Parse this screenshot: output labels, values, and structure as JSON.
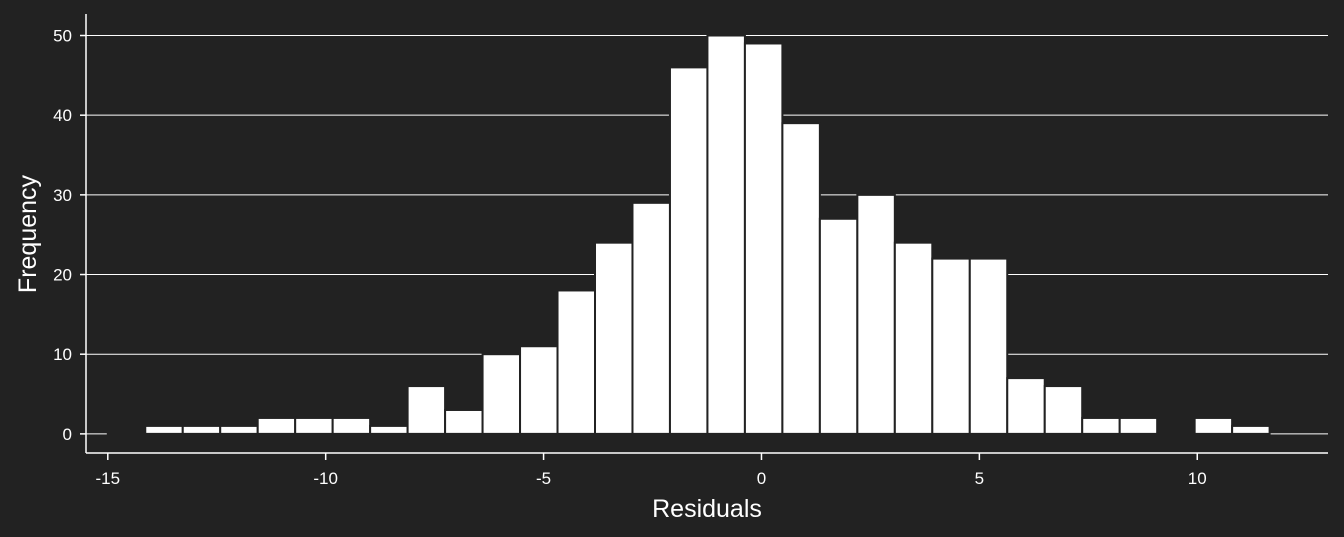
{
  "colors": {
    "background": "#222222",
    "bar_fill": "#ffffff",
    "bar_stroke": "#222222",
    "grid": "#ffffff",
    "axis": "#ffffff"
  },
  "chart_data": {
    "type": "bar",
    "subtype": "histogram",
    "title": "",
    "xlabel": "Residuals",
    "ylabel": "Frequency",
    "bin_width": 0.86,
    "bins": [
      {
        "x_start": -15.0,
        "x_end": -14.14,
        "count": 0
      },
      {
        "x_start": -14.14,
        "x_end": -13.28,
        "count": 1
      },
      {
        "x_start": -13.28,
        "x_end": -12.42,
        "count": 1
      },
      {
        "x_start": -12.42,
        "x_end": -11.56,
        "count": 1
      },
      {
        "x_start": -11.56,
        "x_end": -10.7,
        "count": 2
      },
      {
        "x_start": -10.7,
        "x_end": -9.84,
        "count": 2
      },
      {
        "x_start": -9.84,
        "x_end": -8.98,
        "count": 2
      },
      {
        "x_start": -8.98,
        "x_end": -8.12,
        "count": 1
      },
      {
        "x_start": -8.12,
        "x_end": -7.26,
        "count": 6
      },
      {
        "x_start": -7.26,
        "x_end": -6.4,
        "count": 3
      },
      {
        "x_start": -6.4,
        "x_end": -5.54,
        "count": 10
      },
      {
        "x_start": -5.54,
        "x_end": -4.68,
        "count": 11
      },
      {
        "x_start": -4.68,
        "x_end": -3.82,
        "count": 18
      },
      {
        "x_start": -3.82,
        "x_end": -2.96,
        "count": 24
      },
      {
        "x_start": -2.96,
        "x_end": -2.1,
        "count": 29
      },
      {
        "x_start": -2.1,
        "x_end": -1.24,
        "count": 46
      },
      {
        "x_start": -1.24,
        "x_end": -0.38,
        "count": 50
      },
      {
        "x_start": -0.38,
        "x_end": 0.48,
        "count": 49
      },
      {
        "x_start": 0.48,
        "x_end": 1.34,
        "count": 39
      },
      {
        "x_start": 1.34,
        "x_end": 2.2,
        "count": 27
      },
      {
        "x_start": 2.2,
        "x_end": 3.06,
        "count": 30
      },
      {
        "x_start": 3.06,
        "x_end": 3.92,
        "count": 24
      },
      {
        "x_start": 3.92,
        "x_end": 4.78,
        "count": 22
      },
      {
        "x_start": 4.78,
        "x_end": 5.64,
        "count": 22
      },
      {
        "x_start": 5.64,
        "x_end": 6.5,
        "count": 7
      },
      {
        "x_start": 6.5,
        "x_end": 7.36,
        "count": 6
      },
      {
        "x_start": 7.36,
        "x_end": 8.22,
        "count": 2
      },
      {
        "x_start": 8.22,
        "x_end": 9.08,
        "count": 2
      },
      {
        "x_start": 9.08,
        "x_end": 9.94,
        "count": 0
      },
      {
        "x_start": 9.94,
        "x_end": 10.8,
        "count": 2
      },
      {
        "x_start": 10.8,
        "x_end": 11.66,
        "count": 1
      }
    ],
    "x_ticks": [
      -15,
      -10,
      -5,
      0,
      5,
      10
    ],
    "x_tick_labels": [
      "-15",
      "-10",
      "-5",
      "0",
      "5",
      "10"
    ],
    "y_ticks": [
      0,
      10,
      20,
      30,
      40,
      50
    ],
    "y_tick_labels": [
      "0",
      "10",
      "20",
      "30",
      "40",
      "50"
    ],
    "xlim": [
      -15.5,
      13.0
    ],
    "ylim": [
      -2.4,
      52.7
    ],
    "grid": "horizontal",
    "legend": "none"
  }
}
